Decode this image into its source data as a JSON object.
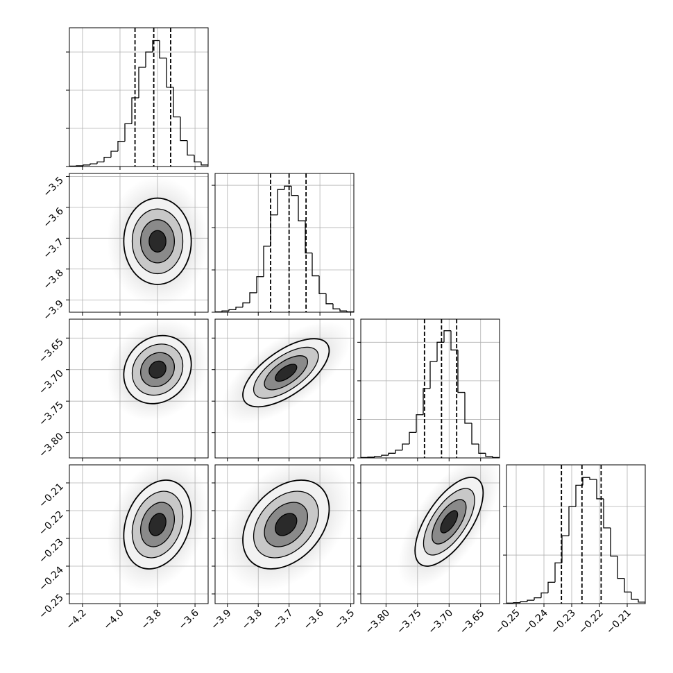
{
  "chart_data": [
    {
      "type": "histogram",
      "bins": [
        -4.27,
        -4.233,
        -4.196,
        -4.159,
        -4.122,
        -4.085,
        -4.048,
        -4.011,
        -3.974,
        -3.937,
        -3.9,
        -3.863,
        -3.826,
        -3.789,
        -3.752,
        -3.715,
        -3.678,
        -3.641,
        -3.604,
        -3.567,
        -3.53
      ],
      "values": [
        5,
        10,
        20,
        35,
        60,
        120,
        200,
        330,
        560,
        900,
        1300,
        1500,
        1650,
        1420,
        1040,
        650,
        340,
        150,
        60,
        20
      ],
      "quantiles": [
        -3.92,
        -3.82,
        -3.73
      ],
      "xlim": [
        -4.27,
        -3.53
      ],
      "xticks": [
        {
          "value": -4.2,
          "label": "−4.2"
        },
        {
          "value": -4.0,
          "label": "−4.0"
        },
        {
          "value": -3.8,
          "label": "−3.8"
        },
        {
          "value": -3.6,
          "label": "−3.6"
        }
      ],
      "ylim": [
        0,
        1818
      ],
      "yticks": [
        0,
        500,
        1000,
        1500
      ],
      "color": "#000000",
      "grid": true
    },
    {
      "type": "contour",
      "center": [
        -3.8,
        -3.71
      ],
      "spread": [
        0.09,
        0.07
      ],
      "correlation": 0,
      "levels": [
        0.5,
        1,
        1.5,
        2
      ],
      "xlim": [
        -4.27,
        -3.53
      ],
      "xticks": [
        {
          "value": -4.2,
          "label": "−4.2"
        },
        {
          "value": -4.0,
          "label": "−4.0"
        },
        {
          "value": -3.8,
          "label": "−3.8"
        },
        {
          "value": -3.6,
          "label": "−3.6"
        }
      ],
      "ylim": [
        -3.94,
        -3.49
      ],
      "yticks": [
        {
          "value": -3.9,
          "label": "−3.9"
        },
        {
          "value": -3.8,
          "label": "−3.8"
        },
        {
          "value": -3.7,
          "label": "−3.7"
        },
        {
          "value": -3.6,
          "label": "−3.6"
        },
        {
          "value": -3.5,
          "label": "−3.5"
        }
      ],
      "color": "#000000",
      "grid": true
    },
    {
      "type": "histogram",
      "bins": [
        -3.94,
        -3.9175,
        -3.895,
        -3.8725,
        -3.85,
        -3.8275,
        -3.805,
        -3.7825,
        -3.76,
        -3.7375,
        -3.715,
        -3.6925,
        -3.67,
        -3.6475,
        -3.625,
        -3.6025,
        -3.58,
        -3.5575,
        -3.535,
        -3.5125,
        -3.49
      ],
      "values": [
        5,
        15,
        30,
        60,
        110,
        230,
        420,
        780,
        1150,
        1450,
        1490,
        1380,
        1080,
        700,
        430,
        220,
        100,
        40,
        15,
        5
      ],
      "quantiles": [
        -3.76,
        -3.7,
        -3.645
      ],
      "xlim": [
        -3.94,
        -3.49
      ],
      "xticks": [
        {
          "value": -3.9,
          "label": "−3.9"
        },
        {
          "value": -3.8,
          "label": "−3.8"
        },
        {
          "value": -3.7,
          "label": "−3.7"
        },
        {
          "value": -3.6,
          "label": "−3.6"
        },
        {
          "value": -3.5,
          "label": "−3.5"
        }
      ],
      "ylim": [
        0,
        1640
      ],
      "yticks": [
        0,
        500,
        1000,
        1500
      ],
      "color": "#000000",
      "grid": true
    },
    {
      "type": "contour",
      "center": [
        -3.8,
        -3.7
      ],
      "spread": [
        0.09,
        0.027
      ],
      "correlation": 0.15,
      "levels": [
        0.5,
        1,
        1.5,
        2
      ],
      "xlim": [
        -4.27,
        -3.53
      ],
      "xticks": [
        {
          "value": -4.2,
          "label": "−4.2"
        },
        {
          "value": -4.0,
          "label": "−4.0"
        },
        {
          "value": -3.8,
          "label": "−3.8"
        },
        {
          "value": -3.6,
          "label": "−3.6"
        }
      ],
      "ylim": [
        -3.84,
        -3.62
      ],
      "yticks": [
        {
          "value": -3.8,
          "label": "−3.80"
        },
        {
          "value": -3.75,
          "label": "−3.75"
        },
        {
          "value": -3.7,
          "label": "−3.70"
        },
        {
          "value": -3.65,
          "label": "−3.65"
        }
      ],
      "color": "#000000",
      "grid": true
    },
    {
      "type": "contour",
      "center": [
        -3.71,
        -3.705
      ],
      "spread": [
        0.07,
        0.027
      ],
      "correlation": 0.65,
      "levels": [
        0.5,
        1,
        1.5,
        2
      ],
      "xlim": [
        -3.94,
        -3.49
      ],
      "xticks": [
        {
          "value": -3.9,
          "label": "−3.9"
        },
        {
          "value": -3.8,
          "label": "−3.8"
        },
        {
          "value": -3.7,
          "label": "−3.7"
        },
        {
          "value": -3.6,
          "label": "−3.6"
        },
        {
          "value": -3.5,
          "label": "−3.5"
        }
      ],
      "ylim": [
        -3.84,
        -3.62
      ],
      "yticks": [
        {
          "value": -3.8,
          "label": "−3.80"
        },
        {
          "value": -3.75,
          "label": "−3.75"
        },
        {
          "value": -3.7,
          "label": "−3.70"
        },
        {
          "value": -3.65,
          "label": "−3.65"
        }
      ],
      "color": "#000000",
      "grid": true
    },
    {
      "type": "histogram",
      "bins": [
        -3.84,
        -3.829,
        -3.818,
        -3.807,
        -3.796,
        -3.785,
        -3.774,
        -3.763,
        -3.752,
        -3.741,
        -3.73,
        -3.719,
        -3.708,
        -3.697,
        -3.686,
        -3.675,
        -3.664,
        -3.653,
        -3.642,
        -3.631,
        -3.62
      ],
      "values": [
        5,
        10,
        20,
        35,
        60,
        100,
        180,
        330,
        560,
        900,
        1250,
        1500,
        1650,
        1400,
        850,
        450,
        180,
        60,
        20,
        5
      ],
      "quantiles": [
        -3.739,
        -3.712,
        -3.688
      ],
      "xlim": [
        -3.84,
        -3.62
      ],
      "xticks": [
        {
          "value": -3.8,
          "label": "−3.80"
        },
        {
          "value": -3.75,
          "label": "−3.75"
        },
        {
          "value": -3.7,
          "label": "−3.70"
        },
        {
          "value": -3.65,
          "label": "−3.65"
        }
      ],
      "ylim": [
        0,
        1800
      ],
      "yticks": [
        0,
        500,
        1000,
        1500
      ],
      "color": "#000000",
      "grid": true
    },
    {
      "type": "contour",
      "center": [
        -3.8,
        -0.225
      ],
      "spread": [
        0.09,
        0.008
      ],
      "correlation": 0.25,
      "levels": [
        0.5,
        1,
        1.5,
        2
      ],
      "xlim": [
        -4.27,
        -3.53
      ],
      "xticks": [
        {
          "value": -4.2,
          "label": "−4.2"
        },
        {
          "value": -4.0,
          "label": "−4.0"
        },
        {
          "value": -3.8,
          "label": "−3.8"
        },
        {
          "value": -3.6,
          "label": "−3.6"
        }
      ],
      "ylim": [
        -0.2535,
        -0.2035
      ],
      "yticks": [
        {
          "value": -0.25,
          "label": "−0.25"
        },
        {
          "value": -0.24,
          "label": "−0.24"
        },
        {
          "value": -0.23,
          "label": "−0.23"
        },
        {
          "value": -0.22,
          "label": "−0.22"
        },
        {
          "value": -0.21,
          "label": "−0.21"
        }
      ],
      "color": "#000000",
      "grid": true
    },
    {
      "type": "contour",
      "center": [
        -3.71,
        -0.225
      ],
      "spread": [
        0.07,
        0.008
      ],
      "correlation": 0.35,
      "levels": [
        0.5,
        1,
        1.5,
        2
      ],
      "xlim": [
        -3.94,
        -3.49
      ],
      "xticks": [
        {
          "value": -3.9,
          "label": "−3.9"
        },
        {
          "value": -3.8,
          "label": "−3.8"
        },
        {
          "value": -3.7,
          "label": "−3.7"
        },
        {
          "value": -3.6,
          "label": "−3.6"
        },
        {
          "value": -3.5,
          "label": "−3.5"
        }
      ],
      "ylim": [
        -0.2535,
        -0.2035
      ],
      "yticks": [
        {
          "value": -0.25,
          "label": "−0.25"
        },
        {
          "value": -0.24,
          "label": "−0.24"
        },
        {
          "value": -0.23,
          "label": "−0.23"
        },
        {
          "value": -0.22,
          "label": "−0.22"
        },
        {
          "value": -0.21,
          "label": "−0.21"
        }
      ],
      "color": "#000000",
      "grid": true
    },
    {
      "type": "contour",
      "center": [
        -3.7,
        -0.224
      ],
      "spread": [
        0.027,
        0.008
      ],
      "correlation": 0.65,
      "levels": [
        0.5,
        1,
        1.5,
        2
      ],
      "xlim": [
        -3.84,
        -3.62
      ],
      "xticks": [
        {
          "value": -3.8,
          "label": "−3.80"
        },
        {
          "value": -3.75,
          "label": "−3.75"
        },
        {
          "value": -3.7,
          "label": "−3.70"
        },
        {
          "value": -3.65,
          "label": "−3.65"
        }
      ],
      "ylim": [
        -0.2535,
        -0.2035
      ],
      "yticks": [
        {
          "value": -0.25,
          "label": "−0.25"
        },
        {
          "value": -0.24,
          "label": "−0.24"
        },
        {
          "value": -0.23,
          "label": "−0.23"
        },
        {
          "value": -0.22,
          "label": "−0.22"
        },
        {
          "value": -0.21,
          "label": "−0.21"
        }
      ],
      "color": "#000000",
      "grid": true
    },
    {
      "type": "histogram",
      "bins": [
        -0.2535,
        -0.251,
        -0.2485,
        -0.246,
        -0.2435,
        -0.241,
        -0.2385,
        -0.236,
        -0.2335,
        -0.231,
        -0.2285,
        -0.226,
        -0.2235,
        -0.221,
        -0.2185,
        -0.216,
        -0.2135,
        -0.211,
        -0.2085,
        -0.206,
        -0.2035
      ],
      "values": [
        5,
        10,
        20,
        35,
        60,
        110,
        220,
        420,
        700,
        1000,
        1220,
        1300,
        1280,
        1080,
        780,
        490,
        260,
        120,
        45,
        15
      ],
      "quantiles": [
        -0.2337,
        -0.2263,
        -0.2194
      ],
      "xlim": [
        -0.2535,
        -0.2035
      ],
      "xticks": [
        {
          "value": -0.25,
          "label": "−0.25"
        },
        {
          "value": -0.24,
          "label": "−0.24"
        },
        {
          "value": -0.23,
          "label": "−0.23"
        },
        {
          "value": -0.22,
          "label": "−0.22"
        },
        {
          "value": -0.21,
          "label": "−0.21"
        }
      ],
      "ylim": [
        0,
        1430
      ],
      "yticks": [
        0,
        500,
        1000
      ],
      "color": "#000000",
      "grid": true
    }
  ]
}
